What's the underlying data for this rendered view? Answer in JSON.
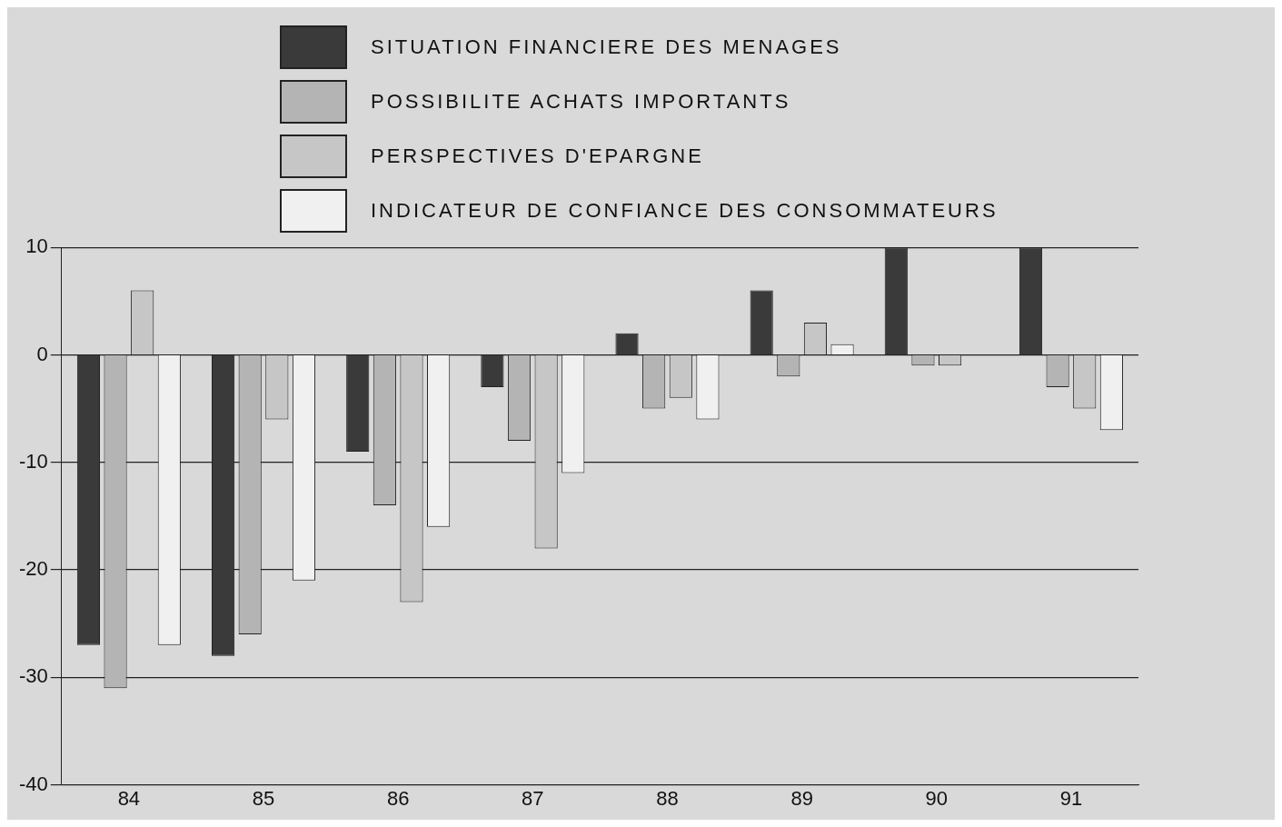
{
  "chart_data": {
    "type": "bar",
    "categories": [
      "84",
      "85",
      "86",
      "87",
      "88",
      "89",
      "90",
      "91"
    ],
    "series": [
      {
        "name": "SITUATION FINANCIERE DES MENAGES",
        "color": "#3a3a3a",
        "values": [
          -27,
          -28,
          -9,
          -3,
          2,
          6,
          10,
          10
        ]
      },
      {
        "name": "POSSIBILITE ACHATS IMPORTANTS",
        "color": "#b4b4b4",
        "values": [
          -31,
          -26,
          -14,
          -8,
          -5,
          -2,
          -1,
          -3
        ]
      },
      {
        "name": "PERSPECTIVES D'EPARGNE",
        "color": "#c6c6c6",
        "values": [
          6,
          -6,
          -23,
          -18,
          -4,
          3,
          -1,
          -5
        ]
      },
      {
        "name": "INDICATEUR DE CONFIANCE DES CONSOMMATEURS",
        "color": "#f0f0f0",
        "values": [
          -27,
          -21,
          -16,
          -11,
          -6,
          1,
          0,
          -7
        ]
      }
    ],
    "ylim": [
      -40,
      10
    ],
    "yticks": [
      -40,
      -30,
      -20,
      -10,
      0,
      10
    ],
    "grid": "y",
    "legend": "top"
  }
}
